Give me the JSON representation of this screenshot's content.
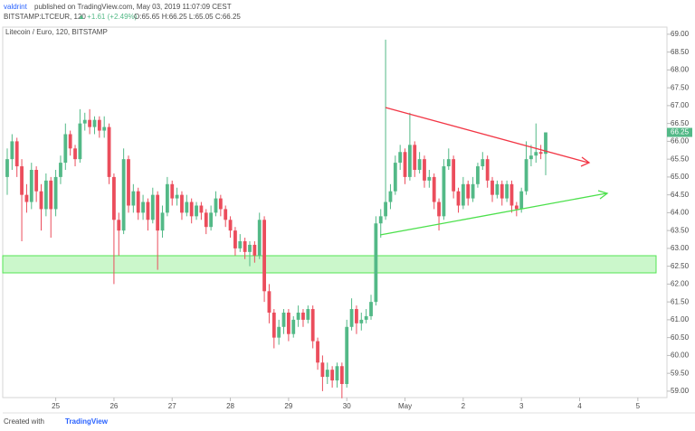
{
  "header": {
    "author": "valdrint",
    "published": "published on TradingView.com, May 03, 2019 11:07:09 CEST",
    "symbol": "BITSTAMP:LTCEUR, 120",
    "change": "▲ +1.61 (+2.49%)",
    "ohlc": "O:65.65 H:66.25 L:65.05 C:66.25"
  },
  "footer": {
    "created": "Created with",
    "brand": "TradingView"
  },
  "chart_data": {
    "type": "candlestick",
    "title": "Litecoin / Euro, 120, BITSTAMP",
    "up_color": "#53b987",
    "down_color": "#eb4d5c",
    "x": [
      0,
      1,
      2,
      3,
      4,
      5,
      6,
      7,
      8,
      9,
      10,
      11,
      12,
      13,
      14,
      15,
      16,
      17,
      18,
      19,
      20,
      21,
      22,
      23,
      24,
      25,
      26,
      27,
      28,
      29,
      30,
      31,
      32,
      33,
      34,
      35,
      36,
      37,
      38,
      39,
      40,
      41,
      42,
      43,
      44,
      45,
      46,
      47,
      48,
      49,
      50,
      51,
      52,
      53,
      54,
      55,
      56,
      57,
      58,
      59,
      60,
      61,
      62,
      63,
      64,
      65,
      66,
      67,
      68,
      69,
      70,
      71,
      72,
      73,
      74,
      75,
      76,
      77,
      78,
      79,
      80,
      81,
      82,
      83,
      84,
      85,
      86,
      87,
      88,
      89,
      90,
      91,
      92,
      93,
      94,
      95,
      96,
      97,
      98,
      99,
      100,
      101,
      102,
      103,
      104,
      105,
      106,
      107,
      108,
      109,
      110,
      111
    ],
    "open": [
      65.0,
      65.5,
      66.0,
      65.3,
      64.5,
      64.3,
      65.2,
      64.6,
      64.1,
      64.9,
      64.1,
      65.0,
      65.4,
      66.2,
      65.8,
      65.5,
      66.5,
      66.6,
      66.4,
      66.6,
      66.3,
      66.4,
      65.0,
      63.8,
      63.5,
      65.5,
      64.2,
      64.6,
      64.0,
      64.3,
      63.8,
      64.5,
      63.5,
      64.0,
      64.8,
      64.4,
      64.5,
      64.0,
      64.3,
      63.9,
      64.2,
      64.0,
      63.6,
      64.0,
      64.4,
      64.1,
      63.8,
      63.5,
      63.0,
      63.2,
      62.9,
      63.1,
      62.8,
      63.8,
      61.8,
      61.2,
      60.5,
      60.8,
      61.2,
      60.6,
      61.0,
      61.2,
      61.0,
      61.3,
      60.4,
      59.8,
      59.4,
      59.6,
      59.3,
      59.7,
      59.2,
      60.8,
      61.3,
      60.9,
      61.0,
      61.1,
      61.5,
      63.7,
      63.9,
      64.3,
      64.6,
      65.4,
      65.7,
      65.0,
      65.9,
      65.2,
      65.5,
      64.9,
      65.0,
      64.3,
      63.9,
      65.3,
      65.5,
      64.6,
      64.2,
      64.8,
      64.4,
      64.8,
      65.3,
      65.5,
      64.9,
      64.5,
      64.8,
      64.4,
      64.8,
      64.2,
      64.1,
      64.6,
      65.5,
      65.6,
      65.7,
      65.65
    ],
    "high": [
      65.8,
      66.2,
      66.1,
      65.5,
      64.8,
      65.4,
      65.3,
      64.8,
      65.1,
      65.0,
      65.2,
      65.6,
      66.5,
      66.3,
      65.9,
      66.9,
      66.8,
      66.9,
      66.7,
      66.7,
      66.7,
      66.5,
      65.1,
      64.0,
      65.8,
      65.6,
      64.8,
      64.7,
      64.5,
      64.4,
      64.7,
      64.6,
      64.2,
      65.0,
      64.9,
      64.7,
      64.6,
      64.5,
      64.4,
      64.3,
      64.3,
      64.1,
      64.2,
      64.6,
      64.5,
      64.2,
      63.9,
      63.6,
      63.4,
      63.3,
      63.2,
      63.2,
      64.0,
      63.9,
      62.0,
      61.3,
      61.0,
      61.3,
      61.3,
      61.1,
      61.4,
      61.3,
      61.4,
      61.4,
      60.5,
      60.0,
      59.8,
      59.7,
      59.8,
      59.8,
      61.0,
      61.6,
      61.4,
      61.2,
      61.3,
      61.7,
      63.9,
      64.1,
      68.85,
      64.8,
      65.6,
      65.9,
      65.8,
      66.8,
      66.0,
      65.7,
      65.6,
      65.2,
      65.1,
      64.4,
      65.5,
      65.8,
      65.6,
      64.7,
      65.0,
      64.9,
      65.0,
      65.4,
      65.7,
      65.6,
      65.0,
      64.9,
      64.9,
      64.9,
      64.9,
      64.3,
      64.7,
      66.0,
      65.9,
      66.5,
      65.9,
      66.25
    ],
    "low": [
      64.5,
      65.2,
      65.0,
      63.2,
      64.0,
      64.1,
      64.3,
      63.5,
      63.9,
      63.3,
      63.9,
      64.8,
      65.2,
      65.6,
      65.3,
      65.4,
      66.3,
      66.2,
      66.2,
      66.1,
      66.1,
      64.8,
      62.0,
      62.8,
      63.4,
      64.0,
      64.0,
      63.8,
      63.8,
      63.5,
      63.7,
      62.4,
      63.3,
      63.9,
      64.2,
      64.2,
      63.8,
      63.9,
      63.7,
      63.8,
      63.8,
      63.4,
      63.5,
      63.9,
      63.9,
      63.6,
      63.3,
      62.8,
      62.9,
      62.7,
      62.5,
      62.6,
      62.7,
      61.5,
      60.9,
      60.2,
      60.3,
      60.6,
      60.4,
      60.5,
      60.8,
      60.8,
      60.9,
      60.2,
      59.6,
      59.0,
      59.2,
      59.1,
      59.1,
      58.8,
      59.1,
      60.7,
      60.6,
      60.7,
      60.9,
      61.0,
      61.4,
      63.3,
      63.8,
      64.1,
      64.5,
      65.2,
      64.8,
      64.9,
      65.0,
      65.1,
      64.7,
      64.7,
      64.1,
      63.5,
      63.8,
      65.2,
      64.4,
      64.0,
      64.1,
      64.2,
      64.3,
      64.7,
      65.2,
      64.7,
      64.3,
      64.4,
      64.2,
      64.3,
      64.0,
      63.9,
      64.0,
      64.5,
      65.3,
      65.4,
      65.5,
      65.05
    ],
    "close": [
      65.5,
      66.0,
      65.3,
      64.5,
      64.3,
      65.2,
      64.6,
      64.1,
      64.9,
      64.1,
      65.0,
      65.4,
      66.2,
      65.8,
      65.5,
      66.5,
      66.6,
      66.4,
      66.6,
      66.3,
      66.4,
      65.0,
      63.8,
      63.5,
      65.5,
      64.2,
      64.6,
      64.0,
      64.3,
      63.8,
      64.5,
      63.5,
      64.0,
      64.8,
      64.4,
      64.5,
      64.0,
      64.3,
      63.9,
      64.2,
      64.0,
      63.6,
      64.0,
      64.4,
      64.1,
      63.8,
      63.5,
      63.0,
      63.2,
      62.9,
      63.1,
      62.8,
      63.8,
      61.8,
      61.2,
      60.5,
      60.8,
      61.2,
      60.6,
      61.0,
      61.2,
      61.0,
      61.3,
      60.4,
      59.8,
      59.4,
      59.6,
      59.3,
      59.7,
      59.2,
      60.8,
      61.3,
      60.9,
      61.0,
      61.1,
      61.5,
      63.7,
      63.9,
      64.3,
      64.6,
      65.4,
      65.7,
      65.0,
      65.9,
      65.2,
      65.5,
      64.9,
      65.0,
      64.3,
      63.9,
      65.3,
      65.5,
      64.6,
      64.2,
      64.8,
      64.4,
      64.8,
      65.3,
      65.5,
      64.9,
      64.5,
      64.8,
      64.4,
      64.8,
      64.2,
      64.1,
      64.6,
      65.5,
      65.6,
      65.7,
      65.65,
      66.25
    ],
    "xlim": [
      -0.93,
      136
    ],
    "xticks": [
      {
        "value": 10,
        "label": "25"
      },
      {
        "value": 22,
        "label": "26"
      },
      {
        "value": 34,
        "label": "27"
      },
      {
        "value": 46,
        "label": "28"
      },
      {
        "value": 58,
        "label": "29"
      },
      {
        "value": 70,
        "label": "30"
      },
      {
        "value": 82,
        "label": "May"
      },
      {
        "value": 94,
        "label": "2"
      },
      {
        "value": 106,
        "label": "3"
      },
      {
        "value": 118,
        "label": "4"
      },
      {
        "value": 130,
        "label": "5"
      }
    ],
    "ylim": [
      58.82,
      69.2
    ],
    "yticks": [
      {
        "value": 59,
        "label": "59.00"
      },
      {
        "value": 59.5,
        "label": "59.50"
      },
      {
        "value": 60,
        "label": "60.00"
      },
      {
        "value": 60.5,
        "label": "60.50"
      },
      {
        "value": 61,
        "label": "61.00"
      },
      {
        "value": 61.5,
        "label": "61.50"
      },
      {
        "value": 62,
        "label": "62.00"
      },
      {
        "value": 62.5,
        "label": "62.50"
      },
      {
        "value": 63,
        "label": "63.00"
      },
      {
        "value": 63.5,
        "label": "63.50"
      },
      {
        "value": 64,
        "label": "64.00"
      },
      {
        "value": 64.5,
        "label": "64.50"
      },
      {
        "value": 65,
        "label": "65.00"
      },
      {
        "value": 65.5,
        "label": "65.50"
      },
      {
        "value": 66,
        "label": "66.00"
      },
      {
        "value": 66.5,
        "label": "66.50"
      },
      {
        "value": 67,
        "label": "67.00"
      },
      {
        "value": 67.5,
        "label": "67.50"
      },
      {
        "value": 68,
        "label": "68.00"
      },
      {
        "value": 68.5,
        "label": "68.50"
      },
      {
        "value": 69,
        "label": "69.00"
      }
    ]
  }
}
